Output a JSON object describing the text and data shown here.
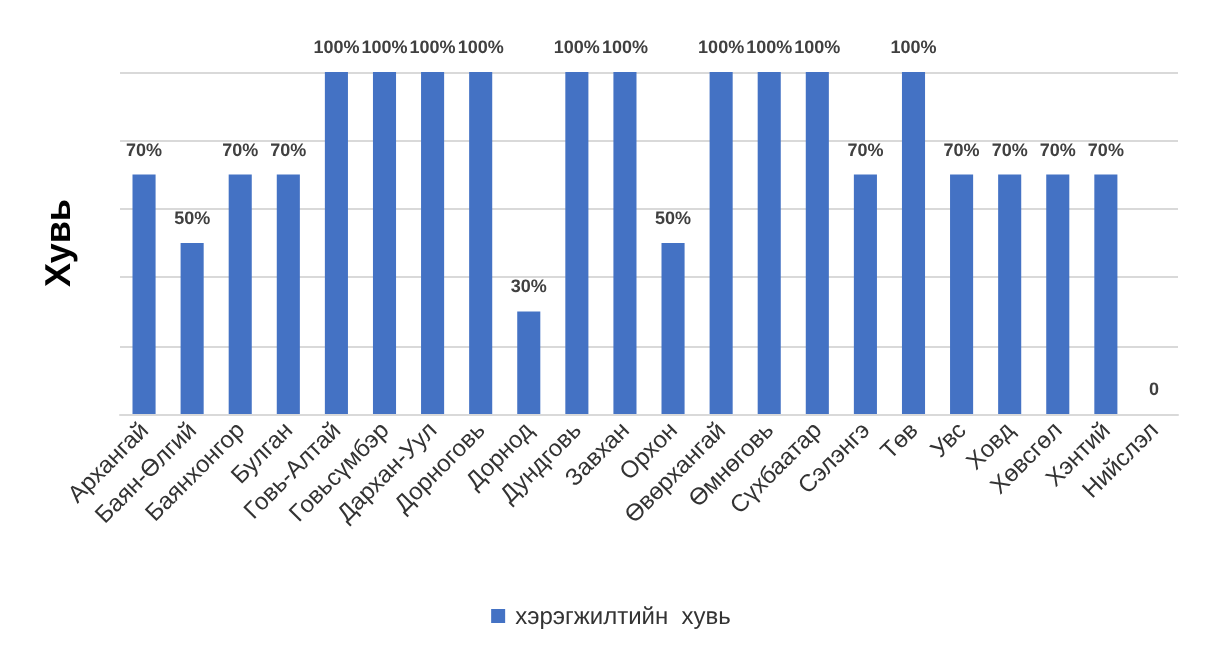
{
  "chart_data": {
    "type": "bar",
    "ylabel": "Хувь",
    "categories": [
      "Архангай",
      "Баян-Өлгий",
      "Баянхонгор",
      "Булган",
      "Говь-Алтай",
      "Говьсүмбэр",
      "Дархан-Уул",
      "Дорноговь",
      "Дорнод",
      "Дундговь",
      "Завхан",
      "Орхон",
      "Өвөрхангай",
      "Өмнөговь",
      "Сүхбаатар",
      "Сэлэнгэ",
      "Төв",
      "Увс",
      "Ховд",
      "Хөвсгөл",
      "Хэнтий",
      "Нийслэл"
    ],
    "series": [
      {
        "name": "хэрэгжилтийн  хувь",
        "color": "#4472c4",
        "values": [
          70,
          50,
          70,
          70,
          100,
          100,
          100,
          100,
          30,
          100,
          100,
          50,
          100,
          100,
          100,
          70,
          100,
          70,
          70,
          70,
          70,
          0
        ],
        "value_labels": [
          "70%",
          "50%",
          "70%",
          "70%",
          "100%",
          "100%",
          "100%",
          "100%",
          "30%",
          "100%",
          "100%",
          "50%",
          "100%",
          "100%",
          "100%",
          "70%",
          "100%",
          "70%",
          "70%",
          "70%",
          "70%",
          "0"
        ]
      }
    ],
    "ylim": [
      0,
      100
    ],
    "yticks": [
      {
        "value": 0,
        "label": null
      },
      {
        "value": 20,
        "label": null
      },
      {
        "value": 40,
        "label": null
      },
      {
        "value": 60,
        "label": null
      },
      {
        "value": 80,
        "label": null
      },
      {
        "value": 100,
        "label": null
      }
    ],
    "tick_labels": "x",
    "grid": "y",
    "legend": "bottom"
  }
}
